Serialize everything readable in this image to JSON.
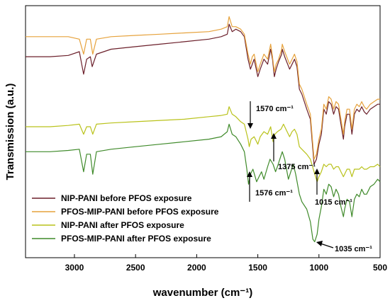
{
  "chart_data": {
    "type": "line",
    "xlabel": "wavenumber (cm⁻¹)",
    "ylabel": "Transmission (a.u.)",
    "xlim": [
      3400,
      500
    ],
    "x_reversed": true,
    "y_ticks_shown": false,
    "xticks": [
      "3000",
      "2500",
      "2000",
      "1500",
      "1000",
      "500"
    ],
    "legend_position": "bottom-left",
    "series": [
      {
        "name": "NIP-PANI before PFOS exposure",
        "color": "#6b1f2a",
        "points": [
          [
            3400,
            63
          ],
          [
            3200,
            63
          ],
          [
            3050,
            63.5
          ],
          [
            2960,
            65
          ],
          [
            2925,
            56
          ],
          [
            2900,
            62
          ],
          [
            2870,
            63
          ],
          [
            2855,
            59
          ],
          [
            2820,
            64
          ],
          [
            2700,
            66
          ],
          [
            2500,
            67
          ],
          [
            2300,
            68
          ],
          [
            2100,
            69
          ],
          [
            1900,
            70
          ],
          [
            1800,
            71
          ],
          [
            1750,
            72
          ],
          [
            1735,
            76
          ],
          [
            1710,
            73
          ],
          [
            1680,
            74
          ],
          [
            1640,
            73
          ],
          [
            1610,
            71
          ],
          [
            1580,
            62
          ],
          [
            1560,
            58
          ],
          [
            1545,
            60
          ],
          [
            1530,
            62
          ],
          [
            1500,
            55
          ],
          [
            1480,
            58
          ],
          [
            1450,
            62
          ],
          [
            1420,
            60
          ],
          [
            1395,
            66
          ],
          [
            1380,
            62
          ],
          [
            1365,
            55
          ],
          [
            1350,
            58
          ],
          [
            1330,
            61
          ],
          [
            1305,
            64
          ],
          [
            1300,
            66
          ],
          [
            1280,
            63
          ],
          [
            1240,
            58
          ],
          [
            1220,
            60
          ],
          [
            1200,
            62
          ],
          [
            1180,
            59
          ],
          [
            1160,
            50
          ],
          [
            1140,
            48
          ],
          [
            1100,
            42
          ],
          [
            1070,
            38
          ],
          [
            1040,
            20
          ],
          [
            1020,
            22
          ],
          [
            1000,
            28
          ],
          [
            980,
            32
          ],
          [
            960,
            42
          ],
          [
            940,
            40
          ],
          [
            920,
            45
          ],
          [
            900,
            44
          ],
          [
            880,
            40
          ],
          [
            860,
            43
          ],
          [
            840,
            42
          ],
          [
            820,
            36
          ],
          [
            800,
            30
          ],
          [
            790,
            35
          ],
          [
            770,
            40
          ],
          [
            750,
            40
          ],
          [
            730,
            32
          ],
          [
            710,
            40
          ],
          [
            690,
            42
          ],
          [
            670,
            41
          ],
          [
            650,
            43
          ],
          [
            630,
            41
          ],
          [
            610,
            40
          ],
          [
            580,
            42
          ],
          [
            550,
            43
          ],
          [
            520,
            44
          ],
          [
            500,
            44
          ]
        ]
      },
      {
        "name": "PFOS-MIP-PANI before PFOS exposure",
        "color": "#e6a23c",
        "points": [
          [
            3400,
            71
          ],
          [
            3200,
            71
          ],
          [
            3050,
            71
          ],
          [
            2960,
            70
          ],
          [
            2925,
            64
          ],
          [
            2900,
            70
          ],
          [
            2870,
            70
          ],
          [
            2850,
            64
          ],
          [
            2820,
            70
          ],
          [
            2700,
            71
          ],
          [
            2500,
            71.5
          ],
          [
            2300,
            72
          ],
          [
            2100,
            72.5
          ],
          [
            1900,
            73
          ],
          [
            1800,
            74
          ],
          [
            1750,
            75
          ],
          [
            1735,
            79
          ],
          [
            1710,
            75
          ],
          [
            1680,
            75
          ],
          [
            1640,
            74
          ],
          [
            1610,
            72
          ],
          [
            1580,
            64
          ],
          [
            1560,
            60
          ],
          [
            1545,
            63
          ],
          [
            1530,
            64
          ],
          [
            1500,
            57
          ],
          [
            1480,
            60
          ],
          [
            1450,
            64
          ],
          [
            1420,
            62
          ],
          [
            1395,
            68
          ],
          [
            1380,
            63
          ],
          [
            1365,
            57
          ],
          [
            1350,
            60
          ],
          [
            1330,
            62
          ],
          [
            1305,
            66
          ],
          [
            1300,
            68
          ],
          [
            1280,
            65
          ],
          [
            1240,
            60
          ],
          [
            1220,
            62
          ],
          [
            1200,
            64
          ],
          [
            1180,
            61
          ],
          [
            1160,
            52
          ],
          [
            1140,
            50
          ],
          [
            1100,
            44
          ],
          [
            1070,
            40
          ],
          [
            1040,
            22
          ],
          [
            1020,
            24
          ],
          [
            1000,
            30
          ],
          [
            980,
            34
          ],
          [
            960,
            44
          ],
          [
            940,
            42
          ],
          [
            920,
            47
          ],
          [
            900,
            46
          ],
          [
            880,
            42
          ],
          [
            860,
            45
          ],
          [
            840,
            44
          ],
          [
            820,
            38
          ],
          [
            800,
            32
          ],
          [
            790,
            37
          ],
          [
            770,
            42
          ],
          [
            750,
            42
          ],
          [
            730,
            34
          ],
          [
            710,
            42
          ],
          [
            690,
            44
          ],
          [
            670,
            43
          ],
          [
            650,
            45
          ],
          [
            630,
            43
          ],
          [
            610,
            42
          ],
          [
            580,
            44
          ],
          [
            550,
            45
          ],
          [
            520,
            46
          ],
          [
            500,
            46
          ]
        ]
      },
      {
        "name": "NIP-PANI after PFOS exposure",
        "color": "#b9c21a",
        "points": [
          [
            3400,
            35
          ],
          [
            3200,
            35
          ],
          [
            3050,
            35.5
          ],
          [
            2960,
            36
          ],
          [
            2925,
            32
          ],
          [
            2900,
            35
          ],
          [
            2870,
            35
          ],
          [
            2850,
            32
          ],
          [
            2820,
            36
          ],
          [
            2700,
            36.5
          ],
          [
            2500,
            37
          ],
          [
            2300,
            37.5
          ],
          [
            2100,
            38
          ],
          [
            1900,
            39
          ],
          [
            1800,
            39.5
          ],
          [
            1750,
            40
          ],
          [
            1735,
            43
          ],
          [
            1710,
            40
          ],
          [
            1680,
            39
          ],
          [
            1640,
            37
          ],
          [
            1610,
            36
          ],
          [
            1580,
            30
          ],
          [
            1570,
            27
          ],
          [
            1555,
            30
          ],
          [
            1530,
            31
          ],
          [
            1500,
            28
          ],
          [
            1480,
            31
          ],
          [
            1450,
            33
          ],
          [
            1420,
            32
          ],
          [
            1395,
            35
          ],
          [
            1375,
            29
          ],
          [
            1360,
            32
          ],
          [
            1340,
            33
          ],
          [
            1310,
            34
          ],
          [
            1290,
            36
          ],
          [
            1270,
            34
          ],
          [
            1240,
            31
          ],
          [
            1220,
            33
          ],
          [
            1200,
            34
          ],
          [
            1180,
            32
          ],
          [
            1160,
            27
          ],
          [
            1140,
            26
          ],
          [
            1100,
            24
          ],
          [
            1070,
            22
          ],
          [
            1040,
            17
          ],
          [
            1015,
            13
          ],
          [
            1000,
            15
          ],
          [
            980,
            17
          ],
          [
            960,
            20
          ],
          [
            940,
            19
          ],
          [
            920,
            20
          ],
          [
            900,
            20
          ],
          [
            880,
            18
          ],
          [
            860,
            19
          ],
          [
            840,
            19
          ],
          [
            820,
            17
          ],
          [
            800,
            15
          ],
          [
            790,
            16
          ],
          [
            770,
            18
          ],
          [
            750,
            18
          ],
          [
            730,
            15
          ],
          [
            710,
            18
          ],
          [
            690,
            18
          ],
          [
            670,
            18
          ],
          [
            650,
            19
          ],
          [
            630,
            18
          ],
          [
            610,
            18
          ],
          [
            580,
            19
          ],
          [
            550,
            19
          ],
          [
            520,
            20
          ],
          [
            500,
            19
          ]
        ]
      },
      {
        "name": "PFOS-MIP-PANI after PFOS exposure",
        "color": "#3f8a2a",
        "points": [
          [
            3400,
            25
          ],
          [
            3200,
            25
          ],
          [
            3050,
            25.5
          ],
          [
            2960,
            26
          ],
          [
            2925,
            17
          ],
          [
            2900,
            24
          ],
          [
            2870,
            24
          ],
          [
            2850,
            16
          ],
          [
            2820,
            25
          ],
          [
            2700,
            26
          ],
          [
            2500,
            27
          ],
          [
            2300,
            28
          ],
          [
            2100,
            29
          ],
          [
            1900,
            30
          ],
          [
            1800,
            31
          ],
          [
            1750,
            33
          ],
          [
            1735,
            36
          ],
          [
            1710,
            32
          ],
          [
            1680,
            31
          ],
          [
            1640,
            28
          ],
          [
            1610,
            25
          ],
          [
            1590,
            18
          ],
          [
            1576,
            12
          ],
          [
            1560,
            16
          ],
          [
            1540,
            18
          ],
          [
            1510,
            13
          ],
          [
            1490,
            15
          ],
          [
            1470,
            17
          ],
          [
            1450,
            14
          ],
          [
            1420,
            19
          ],
          [
            1400,
            22
          ],
          [
            1375,
            20
          ],
          [
            1355,
            17
          ],
          [
            1340,
            19
          ],
          [
            1320,
            22
          ],
          [
            1300,
            25
          ],
          [
            1280,
            22
          ],
          [
            1250,
            14
          ],
          [
            1230,
            17
          ],
          [
            1210,
            20
          ],
          [
            1190,
            16
          ],
          [
            1160,
            8
          ],
          [
            1140,
            5
          ],
          [
            1100,
            2
          ],
          [
            1070,
            -3
          ],
          [
            1050,
            -10
          ],
          [
            1035,
            -11
          ],
          [
            1015,
            -8
          ],
          [
            1000,
            -2
          ],
          [
            980,
            3
          ],
          [
            960,
            10
          ],
          [
            940,
            8
          ],
          [
            920,
            12
          ],
          [
            900,
            11
          ],
          [
            880,
            7
          ],
          [
            860,
            10
          ],
          [
            840,
            8
          ],
          [
            820,
            3
          ],
          [
            800,
            -1
          ],
          [
            790,
            2
          ],
          [
            770,
            6
          ],
          [
            750,
            5
          ],
          [
            730,
            -1
          ],
          [
            710,
            6
          ],
          [
            690,
            8
          ],
          [
            670,
            7
          ],
          [
            650,
            10
          ],
          [
            630,
            8
          ],
          [
            610,
            8
          ],
          [
            580,
            11
          ],
          [
            550,
            12
          ],
          [
            520,
            14
          ],
          [
            500,
            13
          ]
        ]
      }
    ],
    "annotations": [
      {
        "label": "1570 cm⁻¹",
        "x": 1570
      },
      {
        "label": "1375 cm⁻¹",
        "x": 1375
      },
      {
        "label": "1576 cm⁻¹",
        "x": 1576
      },
      {
        "label": "1015 cm⁻¹",
        "x": 1015
      },
      {
        "label": "1035 cm⁻¹",
        "x": 1035
      }
    ]
  }
}
